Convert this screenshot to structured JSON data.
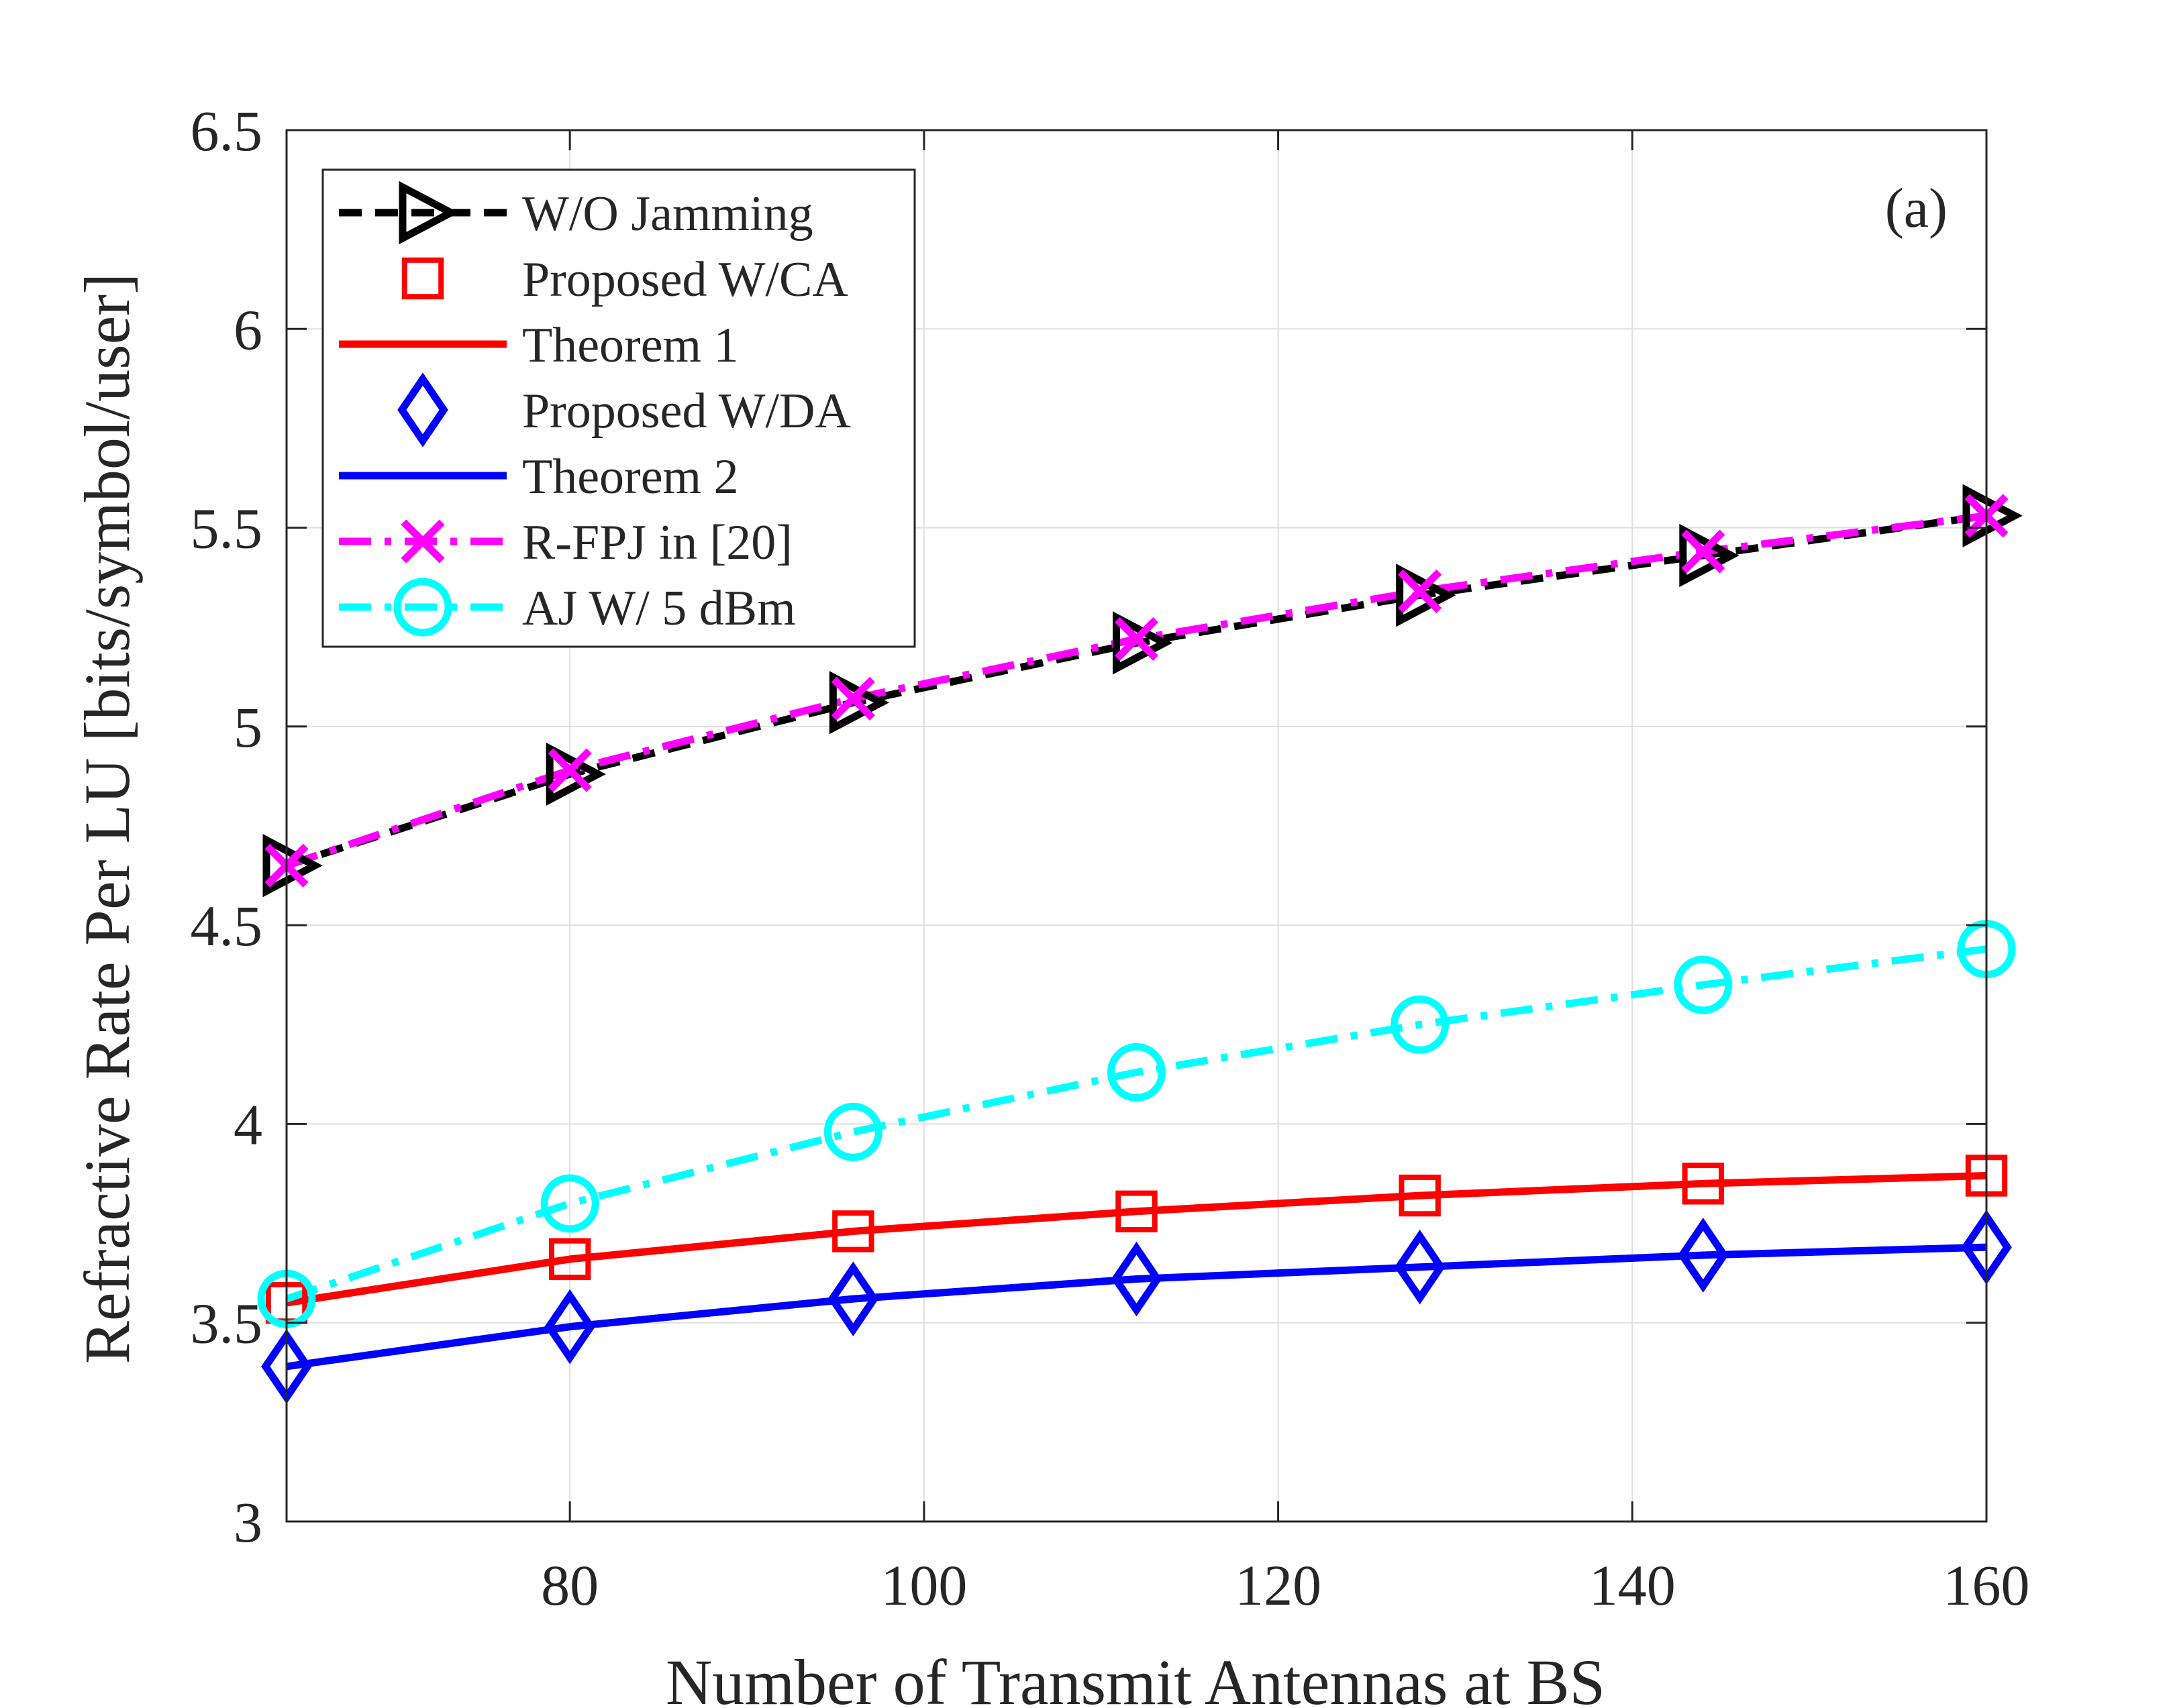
{
  "chart_data": {
    "type": "line",
    "title": "",
    "panel_label": "(a)",
    "xlabel": "Number of Transmit Antennas at BS",
    "ylabel": "Refractive Rate Per LU [bits/symbol/user]",
    "xlim": [
      64,
      160
    ],
    "ylim": [
      3,
      6.5
    ],
    "xticks": [
      80,
      100,
      120,
      140,
      160
    ],
    "xtick_labels": [
      "80",
      "100",
      "120",
      "140",
      "160"
    ],
    "yticks": [
      3,
      3.5,
      4,
      4.5,
      5,
      5.5,
      6,
      6.5
    ],
    "ytick_labels": [
      "3",
      "3.5",
      "4",
      "4.5",
      "5",
      "5.5",
      "6",
      "6.5"
    ],
    "grid": true,
    "legend_position": "top-left",
    "x": [
      64,
      80,
      96,
      112,
      128,
      144,
      160
    ],
    "series": [
      {
        "name": "W/O Jamming",
        "color": "#000000",
        "line": "dashed",
        "marker": "triangle-right",
        "values": [
          4.65,
          4.88,
          5.06,
          5.21,
          5.33,
          5.43,
          5.53
        ]
      },
      {
        "name": "Proposed W/CA",
        "color": "#ff0000",
        "line": "none",
        "marker": "square",
        "values": [
          3.55,
          3.66,
          3.73,
          3.78,
          3.82,
          3.85,
          3.87
        ]
      },
      {
        "name": "Theorem 1",
        "color": "#ff0000",
        "line": "solid",
        "marker": "none",
        "values": [
          3.55,
          3.66,
          3.73,
          3.78,
          3.82,
          3.85,
          3.87
        ]
      },
      {
        "name": "Proposed W/DA",
        "color": "#0000ff",
        "line": "none",
        "marker": "diamond",
        "values": [
          3.39,
          3.49,
          3.56,
          3.61,
          3.64,
          3.67,
          3.69
        ]
      },
      {
        "name": "Theorem 2",
        "color": "#0000ff",
        "line": "solid",
        "marker": "none",
        "values": [
          3.39,
          3.49,
          3.56,
          3.61,
          3.64,
          3.67,
          3.69
        ]
      },
      {
        "name": "R-FPJ in [20]",
        "color": "#ff00ff",
        "line": "dashdot",
        "marker": "x",
        "values": [
          4.65,
          4.89,
          5.07,
          5.22,
          5.34,
          5.44,
          5.53
        ]
      },
      {
        "name": "AJ W/ 5 dBm",
        "color": "#00ffff",
        "line": "dashdot",
        "marker": "circle",
        "values": [
          3.56,
          3.8,
          3.98,
          4.13,
          4.25,
          4.35,
          4.44
        ]
      }
    ]
  }
}
